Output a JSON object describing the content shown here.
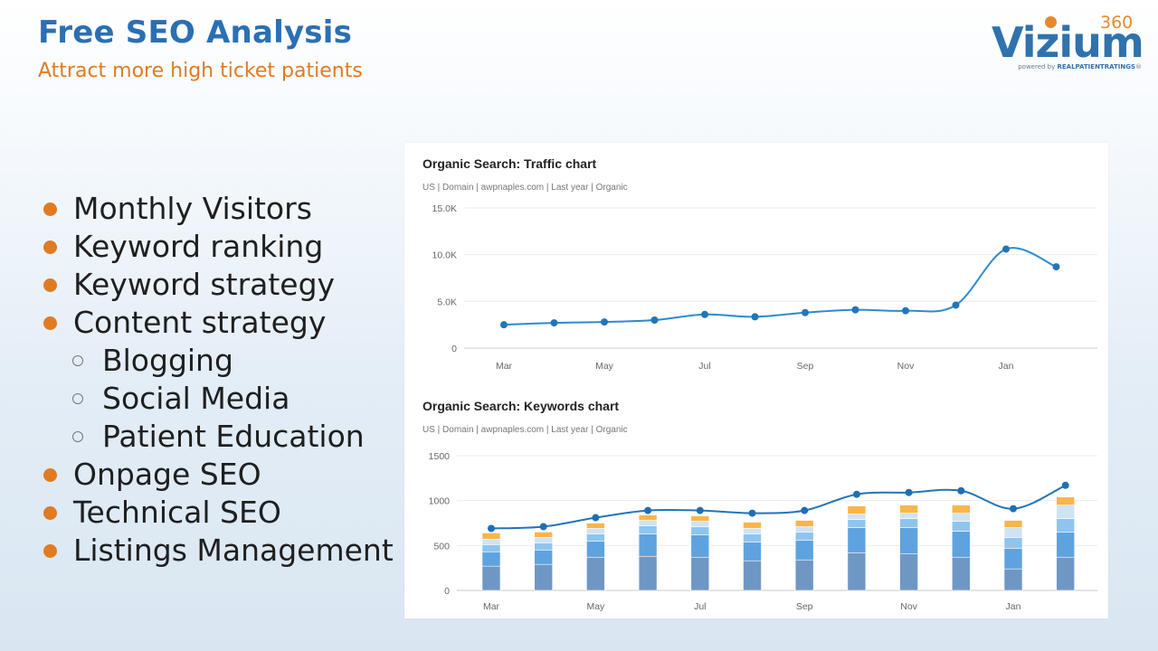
{
  "header": {
    "title": "Free SEO Analysis",
    "subtitle": "Attract more high ticket patients"
  },
  "logo": {
    "word": "Vizium",
    "number": "360",
    "tagline_prefix": "powered by",
    "tagline_brand": "REALPATIENTRATINGS",
    "tagline_mark": "®"
  },
  "bullets": [
    {
      "text": "Monthly Visitors",
      "level": 1
    },
    {
      "text": "Keyword ranking",
      "level": 1
    },
    {
      "text": "Keyword strategy",
      "level": 1
    },
    {
      "text": "Content strategy",
      "level": 1
    },
    {
      "text": "Blogging",
      "level": 2
    },
    {
      "text": "Social Media",
      "level": 2
    },
    {
      "text": "Patient Education",
      "level": 2
    },
    {
      "text": "Onpage SEO",
      "level": 1
    },
    {
      "text": "Technical SEO",
      "level": 1
    },
    {
      "text": "Listings Management",
      "level": 1
    }
  ],
  "colors": {
    "title": "#2b6fb3",
    "subtitle": "#e07b22",
    "bullet": "#e07b22",
    "line": "#2b8bd0",
    "bar_colors": [
      "#6f97c4",
      "#5ea3e0",
      "#8ec5ee",
      "#cfe3f4",
      "#f8b54c"
    ]
  },
  "chart_data": [
    {
      "type": "line",
      "title": "Organic Search: Traffic chart",
      "subtitle": "US | Domain | awpnaples.com | Last year | Organic",
      "x_ticks": [
        "Mar",
        "May",
        "Jul",
        "Sep",
        "Nov",
        "Jan"
      ],
      "y_ticks": [
        "15.0K",
        "10.0K",
        "5.0K",
        "0"
      ],
      "ylim": [
        0,
        15000
      ],
      "series": [
        {
          "values": [
            2500,
            2700,
            2800,
            3000,
            3600,
            3350,
            3800,
            4100,
            4000,
            4600,
            10600,
            8700
          ]
        }
      ]
    },
    {
      "type": "bar",
      "stacked": true,
      "title": "Organic Search: Keywords chart",
      "subtitle": "US | Domain | awpnaples.com | Last year | Organic",
      "x_ticks": [
        "Mar",
        "May",
        "Jul",
        "Sep",
        "Nov",
        "Jan"
      ],
      "y_ticks": [
        "1500",
        "1000",
        "500",
        "0"
      ],
      "ylim": [
        0,
        1500
      ],
      "bars": [
        [
          270,
          160,
          80,
          60,
          70
        ],
        [
          290,
          160,
          80,
          60,
          60
        ],
        [
          370,
          180,
          80,
          60,
          60
        ],
        [
          380,
          250,
          90,
          60,
          60
        ],
        [
          370,
          250,
          90,
          60,
          60
        ],
        [
          330,
          210,
          90,
          60,
          70
        ],
        [
          340,
          220,
          90,
          60,
          70
        ],
        [
          420,
          280,
          90,
          60,
          90
        ],
        [
          410,
          290,
          100,
          60,
          90
        ],
        [
          370,
          290,
          110,
          90,
          90
        ],
        [
          240,
          230,
          120,
          110,
          80
        ],
        [
          370,
          280,
          150,
          150,
          90
        ]
      ],
      "line_values": [
        690,
        710,
        810,
        890,
        890,
        860,
        890,
        1070,
        1090,
        1110,
        910,
        1170
      ]
    }
  ]
}
